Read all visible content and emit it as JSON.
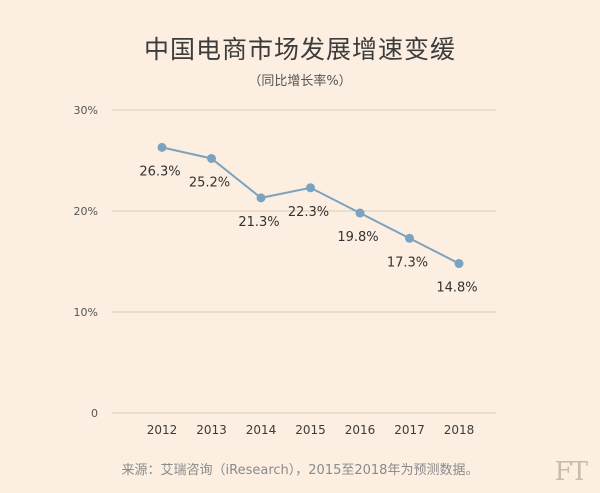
{
  "chart_data": {
    "type": "line",
    "title": "中国电商市场发展增速变缓",
    "subtitle": "（同比增长率%）",
    "x": [
      "2012",
      "2013",
      "2014",
      "2015",
      "2016",
      "2017",
      "2018"
    ],
    "series": [
      {
        "values": [
          26.3,
          25.2,
          21.3,
          22.3,
          19.8,
          17.3,
          14.8
        ]
      }
    ],
    "data_labels": [
      "26.3%",
      "25.2%",
      "21.3%",
      "22.3%",
      "19.8%",
      "17.3%",
      "14.8%"
    ],
    "y_ticks": [
      "0",
      "10%",
      "20%",
      "30%"
    ],
    "y_tick_values": [
      0,
      10,
      20,
      30
    ],
    "ylim": [
      0,
      30
    ],
    "grid": true,
    "line_color": "#7ba2bf",
    "grid_color": "#d9cbbb"
  },
  "source": "来源：艾瑞咨询（iResearch），2015至2018年为预测数据。",
  "logo_text": "FT"
}
